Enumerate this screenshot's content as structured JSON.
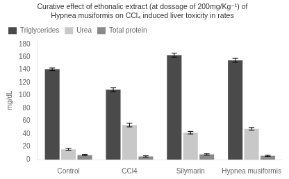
{
  "chart_data": {
    "type": "bar",
    "title": [
      "Curative effect of ethonalic extract (at dossage of 200mg/Kg⁻¹) of",
      "Hypnea musiformis on CCl₄ induced liver toxicity in rates"
    ],
    "categories": [
      "Control",
      "CCl4",
      "Silymarin",
      "Hypnea musiformis"
    ],
    "series": [
      {
        "name": "Triglycerides",
        "values": [
          141,
          109,
          163,
          155
        ],
        "errors": [
          2,
          3,
          3,
          3
        ],
        "color": "#4a4a4a"
      },
      {
        "name": "Urea",
        "values": [
          16,
          54,
          42,
          48
        ],
        "errors": [
          1.5,
          3,
          2,
          2
        ],
        "color": "#c8c8c8"
      },
      {
        "name": "Total protein",
        "values": [
          7,
          5,
          8,
          6
        ],
        "errors": [
          1,
          1,
          1,
          1
        ],
        "color": "#8a8a8a"
      }
    ],
    "ylabel": "mg/dL",
    "ylim": [
      0,
      185
    ],
    "yticks": [
      0,
      20,
      40,
      60,
      80,
      100,
      120,
      140,
      160,
      180
    ],
    "grid": false,
    "legend": "upper left"
  }
}
